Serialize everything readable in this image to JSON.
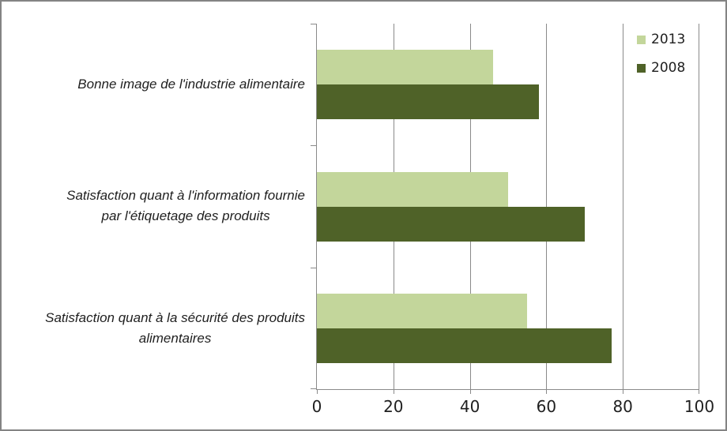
{
  "colors": {
    "background": "#ffffff",
    "frame_border": "#848484",
    "axis": "#8a8a8a",
    "gridline": "#8a8a8a",
    "text": "#1f1f1f",
    "series_2013": "#c3d69b",
    "series_2008": "#4f6228"
  },
  "legend": {
    "items": [
      {
        "label": "2013",
        "swatch": "legend-swatch-2013"
      },
      {
        "label": "2008",
        "swatch": "legend-swatch-2008"
      }
    ]
  },
  "chart_data": {
    "type": "bar",
    "orientation": "horizontal",
    "title": "",
    "xlabel": "",
    "ylabel": "",
    "categories": [
      "Bonne image de l'industrie alimentaire",
      "Satisfaction quant à l'information fournie par l'étiquetage des produits",
      "Satisfaction quant à la sécurité des produits alimentaires"
    ],
    "category_lines": [
      [
        "Bonne image de l'industrie alimentaire"
      ],
      [
        "Satisfaction quant à l'information fournie",
        "par l'étiquetage des produits"
      ],
      [
        "Satisfaction quant à la sécurité des produits",
        "alimentaires"
      ]
    ],
    "series": [
      {
        "name": "2013",
        "color": "#c3d69b",
        "values": [
          46,
          50,
          55
        ]
      },
      {
        "name": "2008",
        "color": "#4f6228",
        "values": [
          58,
          70,
          77
        ]
      }
    ],
    "xlim": [
      0,
      100
    ],
    "xticks": [
      0,
      20,
      40,
      60,
      80,
      100
    ],
    "grid": true,
    "legend_position": "top-right"
  }
}
